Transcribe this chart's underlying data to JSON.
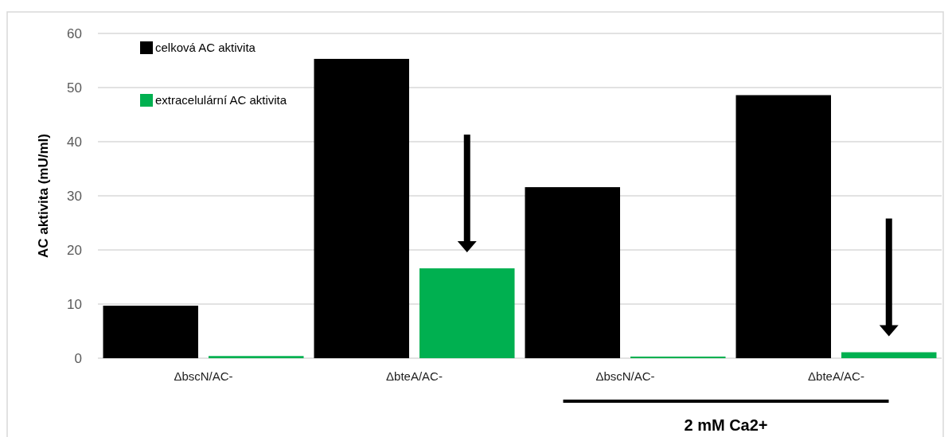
{
  "chart_data": {
    "type": "bar",
    "ylabel": "AC aktivita (mU/ml)",
    "categories": [
      "ΔbscN/AC-",
      "ΔbteA/AC-",
      "ΔbscN/AC-",
      "ΔbteA/AC-"
    ],
    "series": [
      {
        "name": "celková AC aktivita",
        "color": "#000000",
        "values": [
          9.7,
          55.3,
          31.6,
          48.6
        ]
      },
      {
        "name": "extracelulární AC aktivita",
        "color": "#00b050",
        "values": [
          0.4,
          16.6,
          0.3,
          1.1
        ]
      }
    ],
    "ylim": [
      0,
      60
    ],
    "yticks": [
      0,
      10,
      20,
      30,
      40,
      50,
      60
    ],
    "grid": "y",
    "legend": "top left",
    "annotations": [
      "2 mM Ca2+"
    ]
  }
}
